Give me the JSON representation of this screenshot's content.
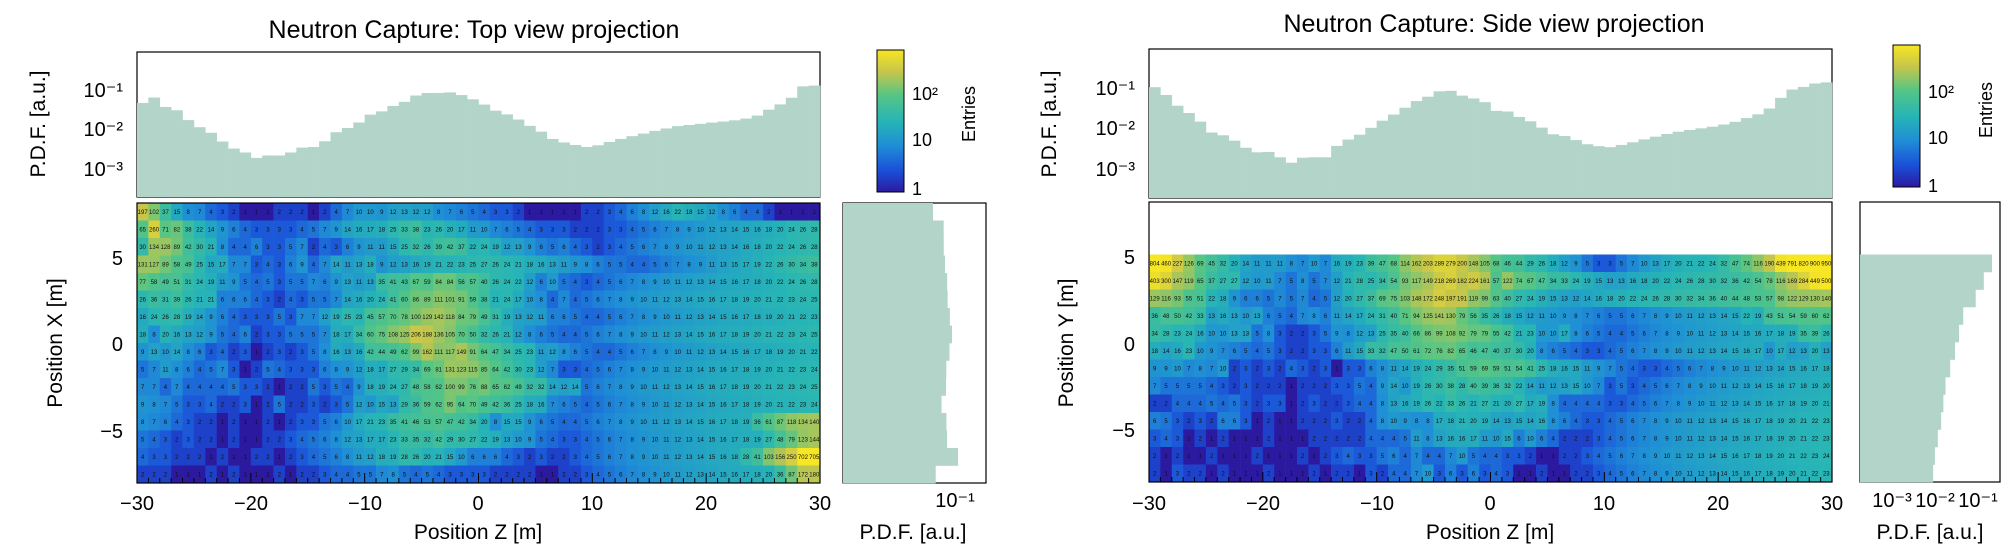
{
  "colors": {
    "histogram_fill": "#b3d4c8",
    "empty_cell": "#ffffff"
  },
  "chart_data": [
    {
      "type": "heatmap",
      "title": "Neutron Capture: Top view projection",
      "xlabel": "Position Z [m]",
      "ylabel": "Position X [m]",
      "xlim": [
        -30,
        30
      ],
      "ylim": [
        -8,
        8
      ],
      "x_ticks": [
        "−30",
        "−20",
        "−10",
        "0",
        "10",
        "20",
        "30"
      ],
      "y_ticks": [
        "5",
        "0",
        "−5"
      ],
      "grid": {
        "nx": 60,
        "ny": 16
      },
      "row_labels": [
        "197 102 37 15 8 7 4 3 2 1 1 1 2 2 2 1 2 4 7 10 10 9 12 13 12 12 8 7 6 5 4 3 3 2 1 1 1 1 1 2 2 3 4 6 8 12 16 22 18 15 12 8 6 4 4 2 1 1 1 1",
        "65 260 71 82 38 22 14 9 6 4 3 3 3 3 4 5 7 9 14 16 17 18 25 33 38 23 26 20 17 11 10 7 6 5 4 3 3 3 2 2 2 3 3 4 5 6 7 8 9 10 12 13 14 15 16 18 20 24 26 28",
        "30 134 128 89 42 30 21 8 4 4 6 3 3 5 7 2 4 3 6 9 11 11 15 25 32 26 39 42 37 22 24 19 12 13 9 6 5 6 4 3 2 3 4 5 6 7 8 9 10 11 12 13 14 16 18 20 22 24 26 28",
        "131 127 89 58 49 25 15 17 7 7 3 4 3 6 9 4 7 14 11 13 18 9 12 13 16 19 21 22 23 25 27 26 24 21 18 16 13 11 9 8 6 5 5 4 4 5 6 7 8 9 11 13 15 17 19 22 26 30 34 38",
        "77 58 49 51 31 24 19 11 9 5 4 5 3 5 5 7 6 9 13 11 13 35 41 43 67 59 84 84 56 57 40 26 24 22 12 6 10 5 4 3 4 5 6 7 8 9 10 11 12 13 14 15 16 17 18 20 22 24 26 28",
        "26 36 31 39 26 21 21 6 6 6 4 3 2 4 3 5 5 7 14 16 20 24 41 60 86 89 111 101 91 59 38 21 24 17 10 8 4 7 4 5 6 7 8 9 10 11 12 13 14 15 16 17 18 19 20 21 22 23 24 25",
        "16 24 26 28 19 14 9 6 4 3 3 3 5 3 7 7 12 19 25 23 45 57 70 78 100 129 142 118 84 79 49 31 19 13 12 11 6 6 5 4 4 5 6 7 8 9 10 11 12 13 14 15 16 17 18 19 20 21 22 23",
        "18 8 20 16 13 12 9 5 4 6 2 3 3 5 5 5 7 18 17 34 60 75 108 125 206 188 136 105 70 50 32 26 21 12 8 6 5 4 4 5 6 7 8 9 10 11 12 13 14 15 16 17 18 19 20 21 22 23 24 25",
        "9 13 10 14 8 6 3 4 2 3 1 2 3 2 3 5 8 16 13 16 42 44 49 62 99 162 111 117 149 91 64 47 34 25 23 11 12 8 6 5 4 4 5 6 7 8 9 10 11 12 13 14 15 16 17 18 19 20 21 22",
        "5 7 11 8 6 4 5 7 3 1 2 5 4 3 3 3 6 8 9 12 18 17 27 29 34 69 81 131 123 115 85 64 42 30 23 12 7 3 3 4 5 6 7 8 9 10 11 12 13 14 15 16 17 18 19 20 21 22 23 24",
        "7 7 4 7 4 4 4 4 5 3 3 2 1 2 2 5 3 5 4 9 18 19 24 27 48 58 62 100 99 76 88 65 62 49 32 32 14 12 14 5 6 7 8 9 10 11 12 13 14 15 16 17 18 19 20 21 22 23 24 25",
        "9 8 7 5 3 3 4 2 2 3 1 2 5 2 2 3 2 3 5 12 10 15 13 29 36 59 62 95 64 70 49 42 36 25 18 16 7 6 5 4 5 6 7 8 9 10 11 12 13 14 15 16 17 18 19 20 21 22 23 24",
        "8 7 6 4 3 2 2 1 2 1 1 2 1 2 3 3 5 6 10 17 21 23 35 41 46 53 57 47 42 34 20 8 15 15 9 6 5 4 4 5 6 7 8 9 10 11 12 13 14 15 16 17 18 19 36 61 87 118 134 140",
        "5 4 3 2 3 2 2 1 2 1 1 2 2 3 4 5 6 8 12 13 17 17 23 33 35 32 42 29 30 27 22 19 13 10 9 5 4 3 3 4 5 6 7 8 9 10 11 12 13 14 15 16 17 18 19 27 48 79 123 144 313",
        "4 3 3 2 2 2 1 2 1 1 2 2 1 2 3 4 5 6 8 11 12 18 19 28 26 20 21 15 10 6 6 6 4 3 2 3 2 2 3 4 5 6 7 8 9 10 11 12 13 14 15 16 18 28 41 103 156 250 702 705",
        "2 2 2 1 1 1 2 1 2 1 1 1 2 1 2 2 3 4 4 5 5 7 8 5 4 5 4 3 3 3 3 2 2 2 2 1 1 2 2 3 4 5 6 7 8 9 10 11 12 13 14 15 16 17 18 20 36 87 172 180"
      ],
      "top_histogram": {
        "ylabel": "P.D.F. [a.u.]",
        "y_ticks": [
          "10⁻¹",
          "10⁻²",
          "10⁻³"
        ],
        "log": true
      },
      "side_histogram": {
        "xlabel": "P.D.F. [a.u.]",
        "x_ticks": [
          "10⁻¹"
        ],
        "log": true
      },
      "colorbar": {
        "label": "Entries",
        "ticks": [
          "10²",
          "10",
          "1"
        ],
        "log": true
      }
    },
    {
      "type": "heatmap",
      "title": "Neutron Capture: Side view projection",
      "xlabel": "Position Z [m]",
      "ylabel": "Position Y [m]",
      "xlim": [
        -30,
        30
      ],
      "ylim": [
        -8,
        8
      ],
      "x_ticks": [
        "−30",
        "−20",
        "−10",
        "0",
        "10",
        "20",
        "30"
      ],
      "y_ticks": [
        "5",
        "0",
        "−5"
      ],
      "grid": {
        "nx": 60,
        "ny": 16
      },
      "row_labels": [
        "",
        "",
        "",
        "804 460 227 126 69 45 32 20 14 11 11 11 8 7 10 7 16 19 23 39 47 68 114 162 203 289 279 200 148 105 68 46 44 29 26 18 12 9 5 3 3 5 7 10 13 17 20 21 22 24 32 47 74 116 190 439 791 820 900 950",
        "403 300 147 119 65 37 27 27 12 10 11 7 5 8 5 7 12 21 28 25 34 54 93 117 149 218 269 182 224 161 57 122 74 67 47 34 33 24 19 15 13 13 16 18 20 22 24 26 28 30 32 36 42 54 78 116 169 284 449 500",
        "129 116 93 55 51 22 18 9 6 6 5 7 5 7 4 5 12 20 27 37 69 75 103 148 172 248 197 191 119 99 63 40 27 24 19 15 13 12 14 16 18 20 22 24 26 28 30 32 34 36 40 44 48 53 57 98 122 129 130 140",
        "36 48 50 42 33 13 16 13 10 13 6 5 4 7 8 6 11 14 17 24 31 40 71 94 125 141 130 79 56 35 26 18 15 12 11 10 9 8 7 6 5 5 6 7 8 9 10 11 12 13 14 15 22 19 43 51 54 59 60 62",
        "34 28 23 24 16 10 10 13 13 5 8 3 2 2 3 5 9 8 12 13 25 35 40 66 86 99 108 92 79 79 55 42 21 23 10 10 17 8 6 5 4 4 5 6 7 8 9 10 11 12 13 14 15 16 17 18 19 35 39 26",
        "18 14 16 23 10 9 7 6 5 4 5 3 2 2 3 3 6 11 15 33 32 47 50 61 72 76 82 65 46 47 40 37 30 20 8 6 5 4 3 3 4 5 6 7 8 9 10 11 12 13 14 15 16 17 10 17 12 13 20 13",
        "9 9 10 7 8 7 10 2 3 2 3 2 4 3 2 3 1 3 3 6 8 11 14 19 24 29 35 51 59 69 59 51 54 41 25 18 16 15 11 9 7 5 4 3 3 4 5 6 7 8 9 10 11 12 13 14 15 16 17 18",
        "7 5 5 5 5 4 3 2 3 2 2 2 1 2 2 2 3 3 5 4 9 14 10 19 26 30 38 28 40 39 36 32 22 14 11 12 13 15 10 7 3 5 3 4 5 6 7 8 9 10 11 12 13 14 15 16 17 18 19 20",
        "2 2 4 4 4 5 4 5 3 2 3 3 1 2 3 2 2 3 4 4 8 13 16 19 26 22 33 26 21 27 21 20 27 17 19 8 4 4 4 4 3 3 4 5 6 7 8 9 10 11 12 13 14 15 16 17 18 19 20 21",
        "6 5 3 2 3 2 6 6 3 1 2 1 1 2 2 2 3 2 2 4 8 10 9 8 8 17 18 21 20 19 14 13 15 14 16 8 6 4 3 3 4 5 6 7 8 9 10 11 12 13 14 15 16 17 18 19 20 21 22 23",
        "3 4 3 1 2 1 2 1 1 1 2 1 1 1 2 2 2 2 2 4 4 4 5 11 8 13 16 16 17 11 10 15 6 10 6 4 2 2 2 3 4 5 6 7 8 9 10 11 12 13 14 15 16 17 18 19 20 21 22 23",
        "2 1 2 1 1 2 1 1 1 2 1 1 1 2 1 2 3 4 3 3 5 6 4 7 4 4 7 10 5 4 4 3 3 2 1 1 2 2 3 4 5 6 7 8 9 10 11 12 13 14 15 16 17 18 19 20 21 22 23 24",
        "2 1 3 2 2 1 2 1 1 1 2 1 1 1 2 1 2 2 1 3 2 4 4 7 10 3 6 3 6 3 4 3 1 1 2 1 1 2 2 3 4 5 6 7 8 9 10 11 12 13 14 15 16 17 18 19 20 21 22 23",
        ""
      ],
      "top_histogram": {
        "ylabel": "P.D.F. [a.u.]",
        "y_ticks": [
          "10⁻¹",
          "10⁻²",
          "10⁻³"
        ],
        "log": true
      },
      "side_histogram": {
        "xlabel": "P.D.F. [a.u.]",
        "x_ticks": [
          "10⁻³",
          "10⁻²",
          "10⁻¹"
        ],
        "log": true
      },
      "colorbar": {
        "label": "Entries",
        "ticks": [
          "10²",
          "10",
          "1"
        ],
        "log": true
      }
    }
  ]
}
